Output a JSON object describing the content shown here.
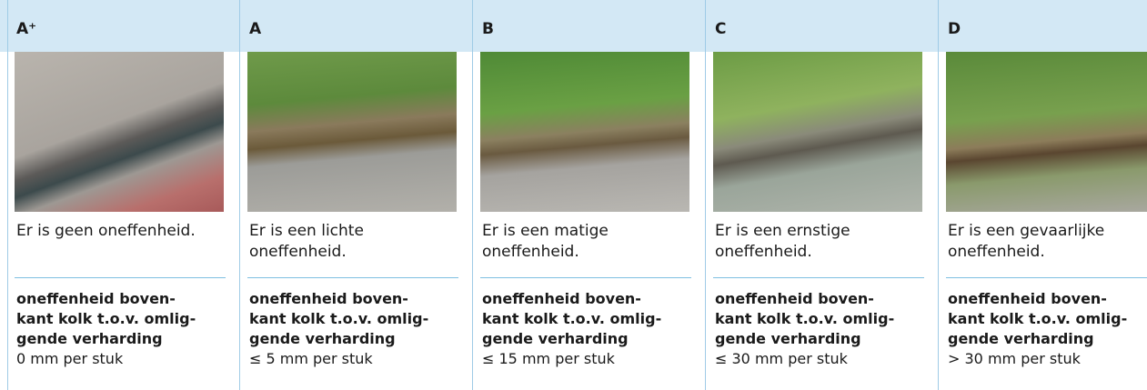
{
  "columns": [
    {
      "grade": "A⁺",
      "description": "Er is geen oneffenheid.",
      "criterion": [
        "oneffenheid boven-",
        "kant kolk t.o.v. omlig-",
        "gende verharding"
      ],
      "measure": "0 mm per stuk"
    },
    {
      "grade": "A",
      "description": "Er is een lichte oneffenheid.",
      "criterion": [
        "oneffenheid boven-",
        "kant kolk t.o.v. omlig-",
        "gende verharding"
      ],
      "measure": "≤ 5 mm per stuk"
    },
    {
      "grade": "B",
      "description": "Er is een matige oneffenheid.",
      "criterion": [
        "oneffenheid boven-",
        "kant kolk t.o.v. omlig-",
        "gende verharding"
      ],
      "measure": "≤ 15 mm per stuk"
    },
    {
      "grade": "C",
      "description": "Er is een ernstige oneffenheid.",
      "criterion": [
        "oneffenheid boven-",
        "kant kolk t.o.v. omlig-",
        "gende verharding"
      ],
      "measure": "≤ 30 mm per stuk"
    },
    {
      "grade": "D",
      "description": "Er is een gevaarlijke oneffenheid.",
      "criterion": [
        "oneffenheid boven-",
        "kant kolk t.o.v. omlig-",
        "gende verharding"
      ],
      "measure": "> 30 mm per stuk"
    }
  ]
}
